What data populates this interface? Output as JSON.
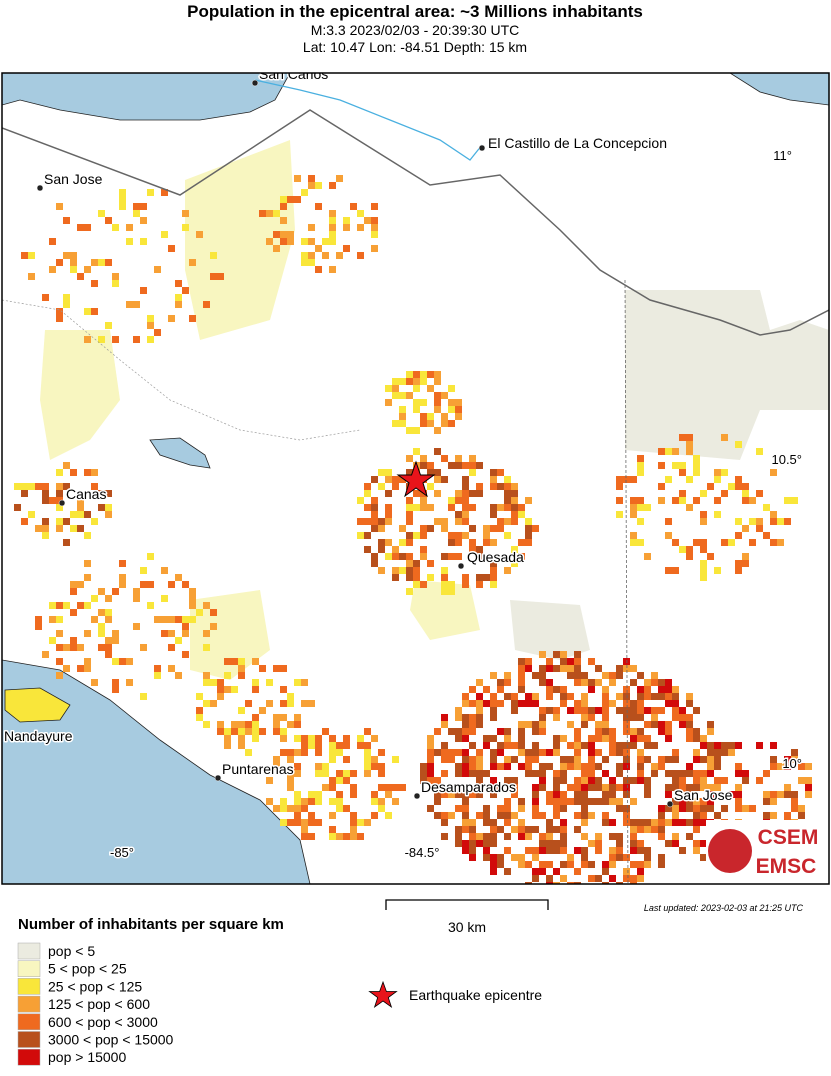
{
  "header": {
    "title": "Population in the epicentral area: ~3 Millions inhabitants",
    "subtitle": "M:3.3 2023/02/03 - 20:39:30 UTC",
    "location": "Lat: 10.47 Lon: -84.51 Depth: 15 km"
  },
  "map": {
    "places": [
      "San Carlos",
      "El Castillo de La Concepcion",
      "San Jose",
      "Canas",
      "Quesada",
      "Nandayure",
      "Puntarenas",
      "Desamparados",
      "San Jose"
    ],
    "lat_labels": [
      "11°",
      "10.5°",
      "10°"
    ],
    "lon_labels": [
      "-85°",
      "-84.5°"
    ],
    "scale_bar": "30 km",
    "logo": [
      "CSEM",
      "EMSC"
    ]
  },
  "legend": {
    "title": "Number of inhabitants per square km",
    "items": [
      {
        "label": "pop < 5",
        "color": "#ebebe0"
      },
      {
        "label": "5 < pop < 25",
        "color": "#f8f6c0"
      },
      {
        "label": "25 < pop < 125",
        "color": "#f9e63a"
      },
      {
        "label": "125 < pop < 600",
        "color": "#f7a035"
      },
      {
        "label": "600 < pop < 3000",
        "color": "#ef6a1f"
      },
      {
        "label": "3000 < pop < 15000",
        "color": "#b8501c"
      },
      {
        "label": "pop > 15000",
        "color": "#d20a0a"
      }
    ],
    "epicentre": "Earthquake epicentre"
  },
  "footer": {
    "last_updated": "Last updated: 2023-02-03 at 21:25 UTC"
  }
}
